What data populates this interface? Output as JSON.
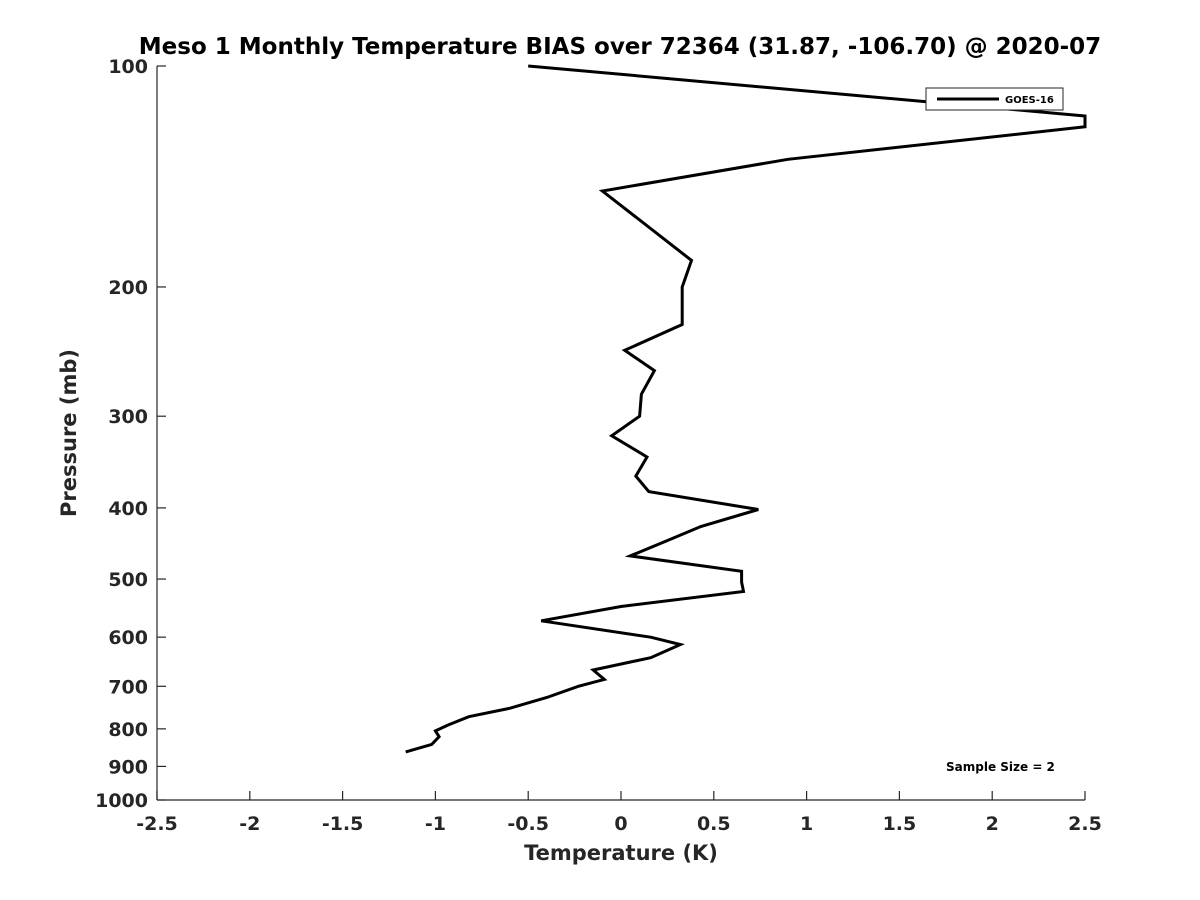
{
  "chart_data": {
    "type": "line",
    "title": "Meso 1 Monthly Temperature BIAS over 72364 (31.87, -106.70) @ 2020-07",
    "xlabel": "Temperature (K)",
    "ylabel": "Pressure (mb)",
    "xlim": [
      -2.5,
      2.5
    ],
    "ylim": [
      1000,
      100
    ],
    "y_scale": "log",
    "y_reversed": true,
    "grid": false,
    "legend_placement": "top-right",
    "x_ticks": [
      -2.5,
      -2,
      -1.5,
      -1,
      -0.5,
      0,
      0.5,
      1,
      1.5,
      2,
      2.5
    ],
    "x_tick_labels": [
      "-2.5",
      "-2",
      "-1.5",
      "-1",
      "-0.5",
      "0",
      "0.5",
      "1",
      "1.5",
      "2",
      "2.5"
    ],
    "y_ticks": [
      100,
      200,
      300,
      400,
      500,
      600,
      700,
      800,
      900,
      1000
    ],
    "y_tick_labels": [
      "100",
      "200",
      "300",
      "400",
      "500",
      "600",
      "700",
      "800",
      "900",
      "1000"
    ],
    "series": [
      {
        "name": "GOES-16",
        "color": "#000000",
        "points": [
          {
            "x": -0.5,
            "p": 100
          },
          {
            "x": 2.5,
            "p": 117
          },
          {
            "x": 2.5,
            "p": 121
          },
          {
            "x": 0.9,
            "p": 134
          },
          {
            "x": -0.1,
            "p": 148
          },
          {
            "x": 0.38,
            "p": 184
          },
          {
            "x": 0.33,
            "p": 200
          },
          {
            "x": 0.33,
            "p": 225
          },
          {
            "x": 0.02,
            "p": 244
          },
          {
            "x": 0.18,
            "p": 260
          },
          {
            "x": 0.11,
            "p": 280
          },
          {
            "x": 0.1,
            "p": 300
          },
          {
            "x": -0.05,
            "p": 319
          },
          {
            "x": 0.14,
            "p": 341
          },
          {
            "x": 0.08,
            "p": 362
          },
          {
            "x": 0.15,
            "p": 380
          },
          {
            "x": 0.74,
            "p": 402
          },
          {
            "x": 0.43,
            "p": 424
          },
          {
            "x": 0.26,
            "p": 442
          },
          {
            "x": 0.05,
            "p": 465
          },
          {
            "x": 0.65,
            "p": 488
          },
          {
            "x": 0.65,
            "p": 505
          },
          {
            "x": 0.66,
            "p": 520
          },
          {
            "x": 0.0,
            "p": 545
          },
          {
            "x": -0.43,
            "p": 570
          },
          {
            "x": 0.16,
            "p": 600
          },
          {
            "x": 0.32,
            "p": 614
          },
          {
            "x": 0.16,
            "p": 640
          },
          {
            "x": -0.15,
            "p": 665
          },
          {
            "x": -0.09,
            "p": 685
          },
          {
            "x": -0.23,
            "p": 700
          },
          {
            "x": -0.4,
            "p": 725
          },
          {
            "x": -0.6,
            "p": 750
          },
          {
            "x": -0.82,
            "p": 770
          },
          {
            "x": -0.93,
            "p": 790
          },
          {
            "x": -1.0,
            "p": 805
          },
          {
            "x": -0.98,
            "p": 820
          },
          {
            "x": -1.02,
            "p": 840
          },
          {
            "x": -1.16,
            "p": 860
          }
        ]
      }
    ],
    "annotations": [
      {
        "text": "Sample Size = 2",
        "x": 2.0,
        "p": 900
      }
    ]
  }
}
